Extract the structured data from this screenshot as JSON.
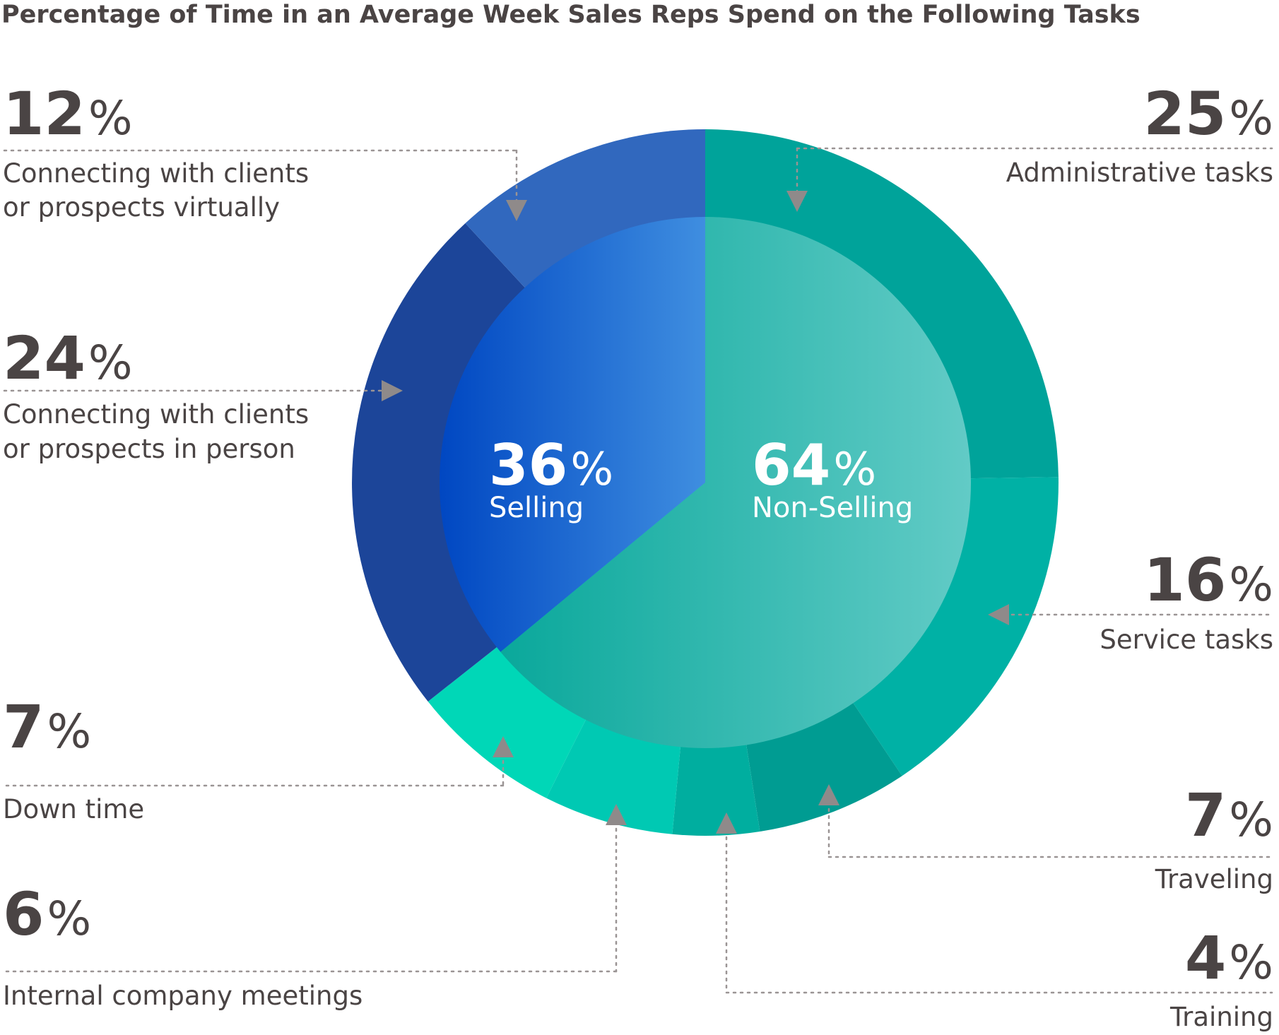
{
  "chart_data": {
    "type": "pie",
    "title": "Percentage of Time in an Average Week Sales Reps Spend on the Following Tasks",
    "inner": [
      {
        "name": "Selling",
        "value": 36,
        "label": "36",
        "color_start": "#0047c2",
        "color_end": "#3f8ee0"
      },
      {
        "name": "Non-Selling",
        "value": 64,
        "label": "64",
        "color_start": "#0aa89b",
        "color_end": "#62cbc6"
      }
    ],
    "outer": [
      {
        "name": "Administrative tasks",
        "value": 25,
        "label": "25",
        "lines": [
          "Administrative tasks"
        ],
        "color": "#00a39a"
      },
      {
        "name": "Service tasks",
        "value": 16,
        "label": "16",
        "lines": [
          "Service tasks"
        ],
        "color": "#00b1a5"
      },
      {
        "name": "Traveling",
        "value": 7,
        "label": "7",
        "lines": [
          "Traveling"
        ],
        "color": "#009c92"
      },
      {
        "name": "Training",
        "value": 4,
        "label": "4",
        "lines": [
          "Training"
        ],
        "color": "#00ae9f"
      },
      {
        "name": "Internal company meetings",
        "value": 6,
        "label": "6",
        "lines": [
          "Internal company meetings"
        ],
        "color": "#00c9b3"
      },
      {
        "name": "Down time",
        "value": 7,
        "label": "7",
        "lines": [
          "Down time"
        ],
        "color": "#00d7b7"
      },
      {
        "name": "Connecting with clients or prospects in person",
        "value": 24,
        "label": "24",
        "lines": [
          "Connecting with clients",
          "or prospects in person"
        ],
        "color": "#1c4599"
      },
      {
        "name": "Connecting with clients or prospects virtually",
        "value": 12,
        "label": "12",
        "lines": [
          "Connecting with clients",
          "or prospects virtually"
        ],
        "color": "#3168be"
      }
    ],
    "percent_sign": "%"
  }
}
